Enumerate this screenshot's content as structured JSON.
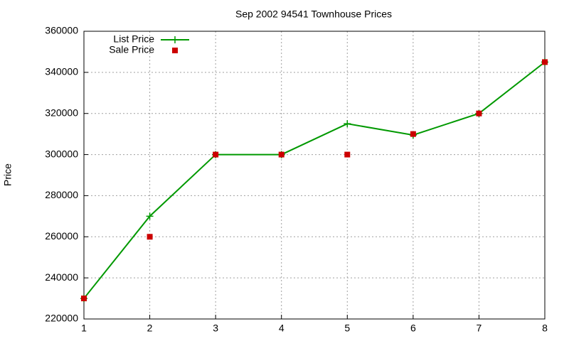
{
  "chart_data": {
    "type": "line",
    "title": "Sep 2002 94541 Townhouse Prices",
    "ylabel": "Price",
    "x": [
      1,
      2,
      3,
      4,
      5,
      6,
      7,
      8
    ],
    "series": [
      {
        "name": "List Price",
        "color": "#009900",
        "style": "linespoints",
        "values": [
          230000,
          270000,
          300000,
          300000,
          315000,
          309500,
          320000,
          345000
        ]
      },
      {
        "name": "Sale Price",
        "color": "#cc0000",
        "style": "points",
        "values": [
          230000,
          260000,
          300000,
          300000,
          300000,
          310000,
          320000,
          345000
        ]
      }
    ],
    "xlim": [
      1,
      8
    ],
    "xticks": [
      1,
      2,
      3,
      4,
      5,
      6,
      7,
      8
    ],
    "ylim": [
      220000,
      360000
    ],
    "yticks": [
      220000,
      240000,
      260000,
      280000,
      300000,
      320000,
      340000,
      360000
    ],
    "grid": true,
    "legend": "top-left"
  }
}
